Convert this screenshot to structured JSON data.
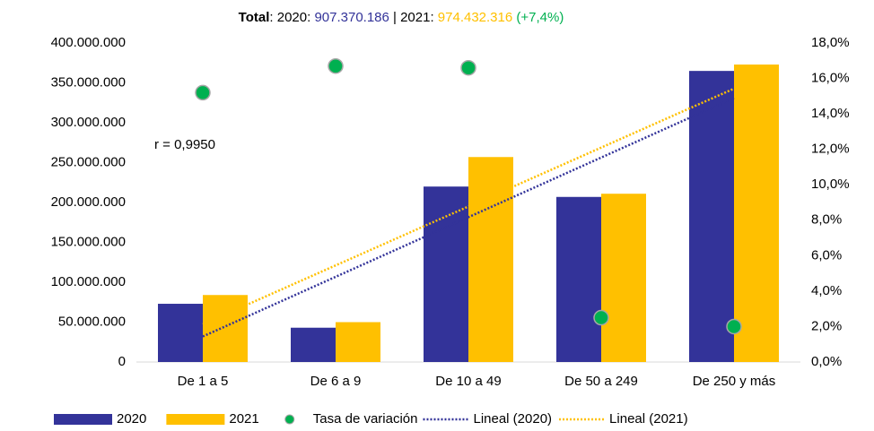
{
  "chart_data": {
    "type": "bar",
    "title": [
      {
        "text": "Total",
        "bold": true
      },
      {
        "text": ": 2020: "
      },
      {
        "text": "907.370.186",
        "color": "#333399"
      },
      {
        "text": " | 2021: "
      },
      {
        "text": "974.432.316",
        "color": "#ffc000"
      },
      {
        "text": " (+7,4%)",
        "color": "#00b050"
      }
    ],
    "annotations": [
      {
        "text": "r = 0,9950"
      }
    ],
    "categories": [
      "De 1 a 5",
      "De 6 a 9",
      "De 10 a 49",
      "De 50 a 249",
      "De 250 y más"
    ],
    "series": [
      {
        "name": "2020",
        "type": "bar",
        "color": "#333399",
        "values": [
          73000000,
          43000000,
          220000000,
          207000000,
          365000000
        ],
        "trendline": {
          "name": "Lineal (2020)"
        }
      },
      {
        "name": "2021",
        "type": "bar",
        "color": "#ffc000",
        "values": [
          84000000,
          50000000,
          257000000,
          211000000,
          373000000
        ],
        "trendline": {
          "name": "Lineal (2021)"
        }
      },
      {
        "name": "Tasa de variación",
        "type": "scatter",
        "axis": "y2",
        "color": "#00b050",
        "values": [
          15.2,
          16.7,
          16.6,
          2.5,
          2.0
        ]
      }
    ],
    "ylim": [
      0,
      400000000
    ],
    "yticks": [
      0,
      {
        "value": 50000000,
        "label": "50.000.000"
      },
      {
        "value": 100000000,
        "label": "100.000.000"
      },
      {
        "value": 150000000,
        "label": "150.000.000"
      },
      {
        "value": 200000000,
        "label": "200.000.000"
      },
      {
        "value": 250000000,
        "label": "250.000.000"
      },
      {
        "value": 300000000,
        "label": "300.000.000"
      },
      {
        "value": 350000000,
        "label": "350.000.000"
      },
      {
        "value": 400000000,
        "label": "400.000.000"
      }
    ],
    "y2lim": [
      0,
      18
    ],
    "y2ticks": [
      {
        "value": 0,
        "label": "0,0%"
      },
      {
        "value": 2,
        "label": "2,0%"
      },
      {
        "value": 4,
        "label": "4,0%"
      },
      {
        "value": 6,
        "label": "6,0%"
      },
      {
        "value": 8,
        "label": "8,0%"
      },
      {
        "value": 10,
        "label": "10,0%"
      },
      {
        "value": 12,
        "label": "12,0%"
      },
      {
        "value": 14,
        "label": "14,0%"
      },
      {
        "value": 16,
        "label": "16,0%"
      },
      {
        "value": 18,
        "label": "18,0%"
      }
    ],
    "grid": false,
    "legend": "bottom"
  }
}
